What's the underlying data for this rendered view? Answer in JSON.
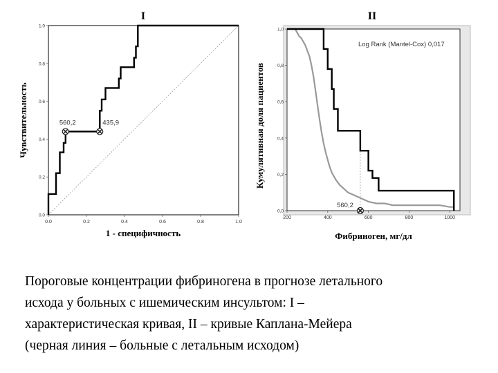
{
  "chart_data": [
    {
      "type": "line",
      "title": "I",
      "xlabel": "1 - специфичность",
      "ylabel": "Чувствительность",
      "xlim": [
        0,
        1
      ],
      "ylim": [
        0,
        1
      ],
      "xticks": [
        "0.0",
        "0.2",
        "0.4",
        "0.6",
        "0.8",
        "1.0"
      ],
      "yticks": [
        "0.0",
        "0.2",
        "0.4",
        "0.6",
        "0.8",
        "1.0"
      ],
      "grid": false,
      "series": [
        {
          "values_x": [
            0,
            0,
            0.04,
            0.04,
            0.06,
            0.06,
            0.08,
            0.08,
            0.09,
            0.09,
            0.27,
            0.27,
            0.28,
            0.28,
            0.3,
            0.3,
            0.37,
            0.37,
            0.38,
            0.38,
            0.45,
            0.45,
            0.46,
            0.46,
            0.47,
            0.47,
            1.0
          ],
          "values_y": [
            0,
            0.11,
            0.11,
            0.22,
            0.22,
            0.33,
            0.33,
            0.38,
            0.38,
            0.44,
            0.44,
            0.55,
            0.55,
            0.61,
            0.61,
            0.67,
            0.67,
            0.72,
            0.72,
            0.78,
            0.78,
            0.83,
            0.83,
            0.89,
            0.89,
            1.0,
            1.0
          ],
          "color": "#000000"
        },
        {
          "values_x": [
            0.09,
            0.27
          ],
          "values_y": [
            0.44,
            0.44
          ],
          "color": "#888888"
        }
      ],
      "reference_line": {
        "values_x": [
          0,
          1
        ],
        "values_y": [
          0,
          1
        ]
      },
      "annotations": [
        {
          "text": "560,2",
          "x": 0.09,
          "y": 0.44
        },
        {
          "text": "435,9",
          "x": 0.27,
          "y": 0.44
        }
      ]
    },
    {
      "type": "line",
      "title": "II",
      "xlabel": "Фибриноген, мг/дл",
      "ylabel": "Кумулятивная доля пациентов",
      "xlim": [
        200,
        1050
      ],
      "ylim": [
        0,
        1.0
      ],
      "xticks": [
        "200",
        "400",
        "600",
        "800",
        "1000"
      ],
      "yticks": [
        "0,0",
        "0,2",
        "0,4",
        "0,6",
        "0,8",
        "1,0"
      ],
      "legend_text": "Log Rank (Mantel-Cox) 0,017",
      "series": [
        {
          "values_x": [
            200,
            380,
            380,
            400,
            400,
            420,
            420,
            430,
            430,
            450,
            450,
            560,
            560,
            600,
            600,
            620,
            620,
            650,
            650,
            1020,
            1020
          ],
          "values_y": [
            1.0,
            1.0,
            0.89,
            0.89,
            0.78,
            0.78,
            0.67,
            0.67,
            0.56,
            0.56,
            0.44,
            0.44,
            0.33,
            0.33,
            0.22,
            0.22,
            0.18,
            0.18,
            0.11,
            0.11,
            0.0
          ],
          "color": "#000000"
        },
        {
          "values_x": [
            200,
            240,
            250,
            260,
            270,
            280,
            290,
            300,
            310,
            320,
            330,
            340,
            350,
            360,
            370,
            380,
            390,
            400,
            410,
            420,
            440,
            460,
            480,
            500,
            520,
            540,
            560,
            580,
            600,
            640,
            680,
            720,
            760,
            800,
            850,
            900,
            950,
            1000,
            1020,
            1020
          ],
          "values_y": [
            1.0,
            1.0,
            0.98,
            0.96,
            0.95,
            0.93,
            0.91,
            0.88,
            0.85,
            0.8,
            0.74,
            0.66,
            0.58,
            0.5,
            0.43,
            0.37,
            0.32,
            0.28,
            0.24,
            0.21,
            0.17,
            0.14,
            0.12,
            0.1,
            0.09,
            0.08,
            0.07,
            0.06,
            0.05,
            0.04,
            0.04,
            0.03,
            0.03,
            0.03,
            0.03,
            0.03,
            0.03,
            0.02,
            0.02,
            0.0
          ],
          "color": "#999999"
        }
      ],
      "reference_line": {
        "values_x": [
          560,
          560
        ],
        "values_y": [
          0,
          0.44
        ]
      },
      "annotations": [
        {
          "text": "560,2",
          "x": 560,
          "y": 0
        }
      ]
    }
  ],
  "caption": {
    "lines": [
      "Пороговые концентрации фибриногена в прогнозе летального",
      "исхода у больных с ишемическим инсультом: I –",
      "характеристическая кривая, II – кривые Каплана-Мейера",
      "(черная линия – больные с летальным исходом)"
    ]
  }
}
